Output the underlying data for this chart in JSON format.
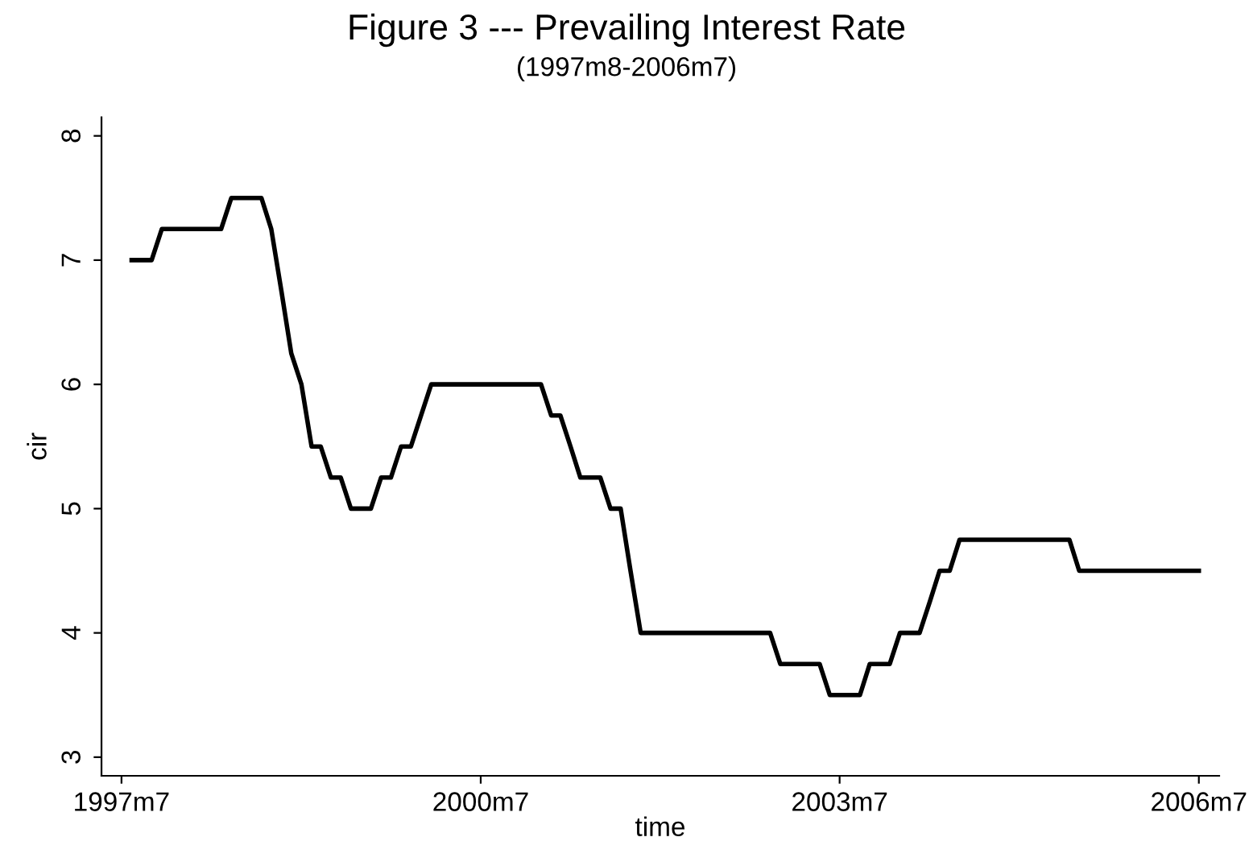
{
  "chart_data": {
    "type": "line",
    "title": "Figure 3 --- Prevailing Interest Rate",
    "subtitle": "(1997m8-2006m7)",
    "xlabel": "time",
    "ylabel": "cir",
    "x": [
      "1997-08",
      "1997-10",
      "1997-11",
      "1998-05",
      "1998-06",
      "1998-09",
      "1998-10",
      "1998-11",
      "1998-12",
      "1999-01",
      "1999-02",
      "1999-03",
      "1999-04",
      "1999-05",
      "1999-06",
      "1999-08",
      "1999-09",
      "1999-10",
      "1999-11",
      "1999-12",
      "2000-01",
      "2000-02",
      "2001-01",
      "2001-02",
      "2001-03",
      "2001-04",
      "2001-05",
      "2001-07",
      "2001-08",
      "2001-09",
      "2001-10",
      "2001-11",
      "2002-12",
      "2003-01",
      "2003-05",
      "2003-06",
      "2003-09",
      "2003-10",
      "2003-12",
      "2004-01",
      "2004-03",
      "2004-04",
      "2004-05",
      "2004-06",
      "2004-07",
      "2005-06",
      "2005-07",
      "2006-07"
    ],
    "series": [
      {
        "color": "#000000",
        "values": [
          7.0,
          7.0,
          7.25,
          7.25,
          7.5,
          7.5,
          7.25,
          6.75,
          6.25,
          6.0,
          5.5,
          5.5,
          5.25,
          5.25,
          5.0,
          5.0,
          5.25,
          5.25,
          5.5,
          5.5,
          5.75,
          6.0,
          6.0,
          5.75,
          5.75,
          5.5,
          5.25,
          5.25,
          5.0,
          5.0,
          4.5,
          4.0,
          4.0,
          3.75,
          3.75,
          3.5,
          3.5,
          3.75,
          3.75,
          4.0,
          4.0,
          4.25,
          4.5,
          4.5,
          4.75,
          4.75,
          4.5,
          4.5
        ]
      }
    ],
    "xlim": [
      "1997-05",
      "2006-09"
    ],
    "xticks": [
      {
        "value": "1997-07",
        "label": "1997m7"
      },
      {
        "value": "2000-07",
        "label": "2000m7"
      },
      {
        "value": "2003-07",
        "label": "2003m7"
      },
      {
        "value": "2006-07",
        "label": "2006m7"
      }
    ],
    "ylim": [
      2.85,
      8.15
    ],
    "yticks": [
      3,
      4,
      5,
      6,
      7,
      8
    ],
    "grid": false,
    "legend": false,
    "marker": "none",
    "line_style": "solid"
  }
}
